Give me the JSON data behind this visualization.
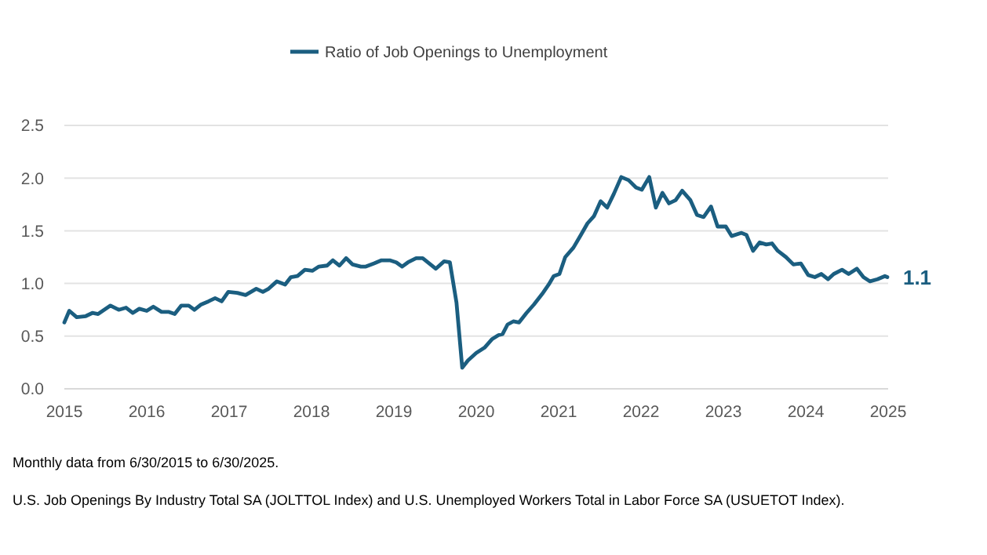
{
  "chart_data": {
    "type": "line",
    "x": [
      2015,
      2015.06,
      2015.15,
      2015.26,
      2015.34,
      2015.41,
      2015.56,
      2015.66,
      2015.75,
      2015.83,
      2015.91,
      2016,
      2016.08,
      2016.18,
      2016.27,
      2016.34,
      2016.42,
      2016.51,
      2016.58,
      2016.66,
      2016.75,
      2016.83,
      2016.91,
      2016.99,
      2017.1,
      2017.2,
      2017.33,
      2017.41,
      2017.48,
      2017.58,
      2017.68,
      2017.75,
      2017.83,
      2017.92,
      2018.01,
      2018.09,
      2018.19,
      2018.26,
      2018.34,
      2018.42,
      2018.5,
      2018.6,
      2018.66,
      2018.76,
      2018.85,
      2018.95,
      2019.03,
      2019.1,
      2019.17,
      2019.27,
      2019.35,
      2019.43,
      2019.51,
      2019.61,
      2019.68,
      2019.76,
      2019.83,
      2019.9,
      2020,
      2020.1,
      2020.19,
      2020.27,
      2020.32,
      2020.38,
      2020.45,
      2020.52,
      2020.61,
      2020.7,
      2020.8,
      2020.88,
      2020.94,
      2021.01,
      2021.08,
      2021.18,
      2021.27,
      2021.35,
      2021.43,
      2021.51,
      2021.59,
      2021.67,
      2021.76,
      2021.85,
      2021.94,
      2022.01,
      2022.1,
      2022.18,
      2022.26,
      2022.34,
      2022.42,
      2022.5,
      2022.6,
      2022.68,
      2022.76,
      2022.85,
      2022.93,
      2023.03,
      2023.1,
      2023.22,
      2023.28,
      2023.36,
      2023.44,
      2023.52,
      2023.59,
      2023.66,
      2023.76,
      2023.85,
      2023.94,
      2024.03,
      2024.11,
      2024.19,
      2024.27,
      2024.34,
      2024.44,
      2024.52,
      2024.62,
      2024.7,
      2024.78,
      2024.87,
      2024.96,
      2024.99
    ],
    "series": [
      {
        "name": "Ratio of Job Openings to Unemployment",
        "color": "#1b5e80",
        "values": [
          0.63,
          0.74,
          0.68,
          0.69,
          0.72,
          0.71,
          0.79,
          0.75,
          0.77,
          0.72,
          0.76,
          0.74,
          0.78,
          0.73,
          0.73,
          0.71,
          0.79,
          0.79,
          0.75,
          0.8,
          0.83,
          0.86,
          0.83,
          0.92,
          0.91,
          0.89,
          0.95,
          0.92,
          0.95,
          1.02,
          0.99,
          1.06,
          1.07,
          1.13,
          1.12,
          1.16,
          1.17,
          1.22,
          1.17,
          1.24,
          1.18,
          1.16,
          1.16,
          1.19,
          1.22,
          1.22,
          1.2,
          1.16,
          1.2,
          1.24,
          1.24,
          1.19,
          1.14,
          1.21,
          1.2,
          0.82,
          0.2,
          0.27,
          0.34,
          0.39,
          0.47,
          0.51,
          0.52,
          0.61,
          0.64,
          0.63,
          0.72,
          0.8,
          0.9,
          0.99,
          1.07,
          1.09,
          1.25,
          1.34,
          1.46,
          1.57,
          1.64,
          1.78,
          1.72,
          1.85,
          2.01,
          1.98,
          1.91,
          1.89,
          2.01,
          1.72,
          1.86,
          1.76,
          1.79,
          1.88,
          1.79,
          1.65,
          1.63,
          1.73,
          1.54,
          1.54,
          1.45,
          1.48,
          1.46,
          1.31,
          1.39,
          1.37,
          1.38,
          1.31,
          1.25,
          1.18,
          1.19,
          1.08,
          1.06,
          1.09,
          1.04,
          1.09,
          1.13,
          1.09,
          1.14,
          1.06,
          1.02,
          1.04,
          1.07,
          1.06
        ]
      }
    ],
    "xlim": [
      2015,
      2025
    ],
    "xticks": [
      2015,
      2016,
      2017,
      2018,
      2019,
      2020,
      2021,
      2022,
      2023,
      2024,
      2025
    ],
    "ylim": [
      0,
      2.5
    ],
    "yticks": [
      {
        "value": 0,
        "label": "0.0"
      },
      {
        "value": 0.5,
        "label": "0.5"
      },
      {
        "value": 1,
        "label": "1.0"
      },
      {
        "value": 1.5,
        "label": "1.5"
      },
      {
        "value": 2,
        "label": "2.0"
      },
      {
        "value": 2.5,
        "label": "2.5"
      }
    ],
    "grid": "y",
    "legend": "top",
    "line_style": "solid",
    "annotations": [
      {
        "text": "1.1",
        "x": 2024.99,
        "y": 1.06
      },
      "Monthly data from 6/30/2015 to 6/30/2025.",
      "U.S. Job Openings By Industry Total SA (JOLTTOL Index) and U.S. Unemployed Workers Total in Labor Force SA (USUETOT Index)."
    ]
  }
}
